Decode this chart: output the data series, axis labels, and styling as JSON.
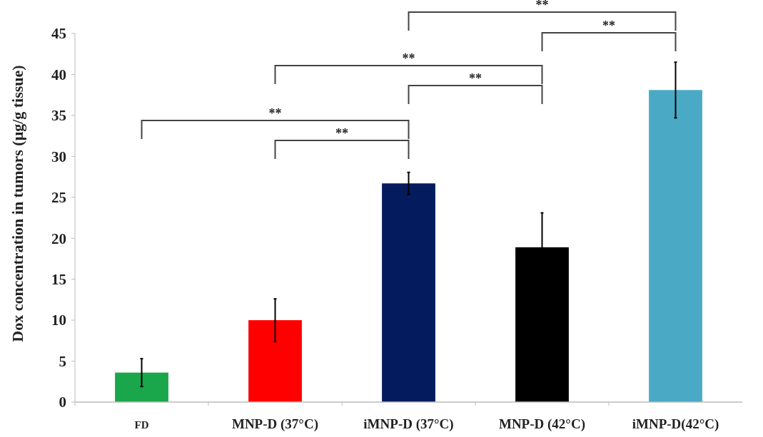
{
  "chart_data": {
    "type": "bar",
    "ylabel": "Dox concentration in tumors (μg/g tissue)",
    "categories": [
      "FD",
      "MNP-D (37°C)",
      "iMNP-D (37°C)",
      "MNP-D (42°C)",
      "iMNP-D(42°C)"
    ],
    "values": [
      3.6,
      10.0,
      26.7,
      18.9,
      38.1
    ],
    "errors": [
      1.7,
      2.6,
      1.35,
      4.2,
      3.4
    ],
    "colors": [
      "#1aa64a",
      "#ff0000",
      "#041c5e",
      "#000000",
      "#4aaac6"
    ],
    "ylim": [
      0,
      45
    ],
    "yticks": [
      0,
      5,
      10,
      15,
      20,
      25,
      30,
      35,
      40,
      45
    ],
    "grid": false,
    "annotations": [
      "**",
      "**",
      "**",
      "**",
      "**",
      "**"
    ]
  }
}
